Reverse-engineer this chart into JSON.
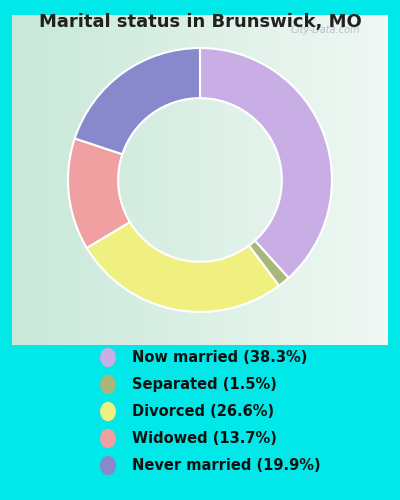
{
  "title": "Marital status in Brunswick, MO",
  "categories": [
    "Now married",
    "Separated",
    "Divorced",
    "Widowed",
    "Never married"
  ],
  "values": [
    38.3,
    1.5,
    26.6,
    13.7,
    19.9
  ],
  "colors": [
    "#c9aee5",
    "#a8b87a",
    "#f0f080",
    "#f0a0a0",
    "#8888cc"
  ],
  "legend_labels": [
    "Now married (38.3%)",
    "Separated (1.5%)",
    "Divorced (26.6%)",
    "Widowed (13.7%)",
    "Never married (19.9%)"
  ],
  "outer_bg": "#00e8e8",
  "chart_box_bg_left": "#c8e8d8",
  "chart_box_bg_right": "#e8f0ec",
  "watermark": "City-Data.com",
  "title_fontsize": 13,
  "legend_fontsize": 10.5,
  "donut_width": 0.38
}
